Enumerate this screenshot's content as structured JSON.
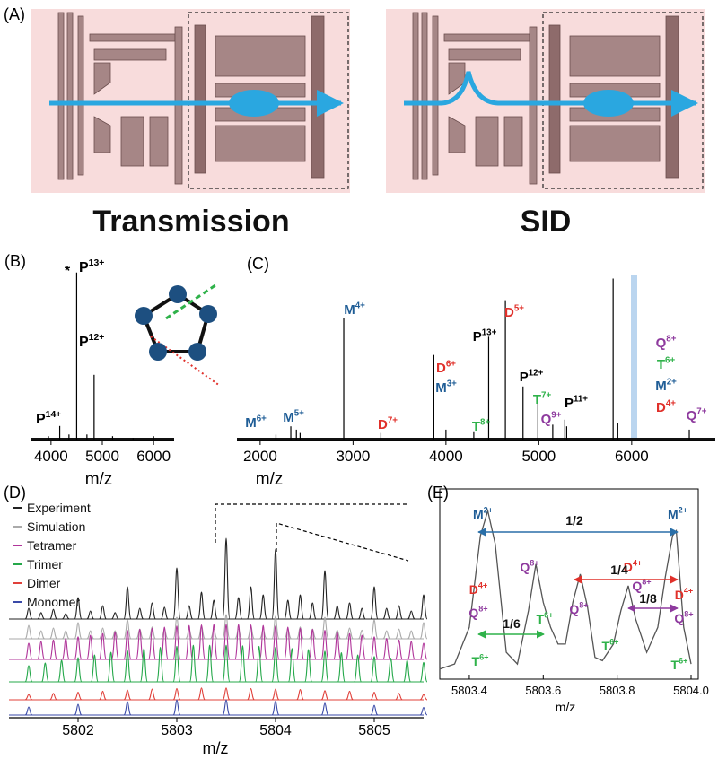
{
  "diagram": {
    "panel": "(A)",
    "labels": [
      "Transmission",
      "SID"
    ]
  },
  "chart_data": [
    {
      "type": "spectrum",
      "panel": "(B)",
      "x_label": "m/z",
      "xlim": [
        3600,
        6400
      ],
      "ylim": [
        0,
        100
      ],
      "xticks": [
        4000,
        5000,
        6000
      ],
      "color": "#000000",
      "x": [
        3950,
        4170,
        4350,
        4500,
        4700,
        4840,
        5200,
        5600,
        6000
      ],
      "values": [
        2,
        8,
        3,
        98,
        3,
        38,
        2,
        1,
        2
      ],
      "annotations": [
        {
          "text": "*",
          "color": "#000000"
        },
        {
          "text": "P",
          "charge": "13+",
          "color": "#000000"
        },
        {
          "text": "P",
          "charge": "12+",
          "color": "#000000"
        },
        {
          "text": "P",
          "charge": "14+",
          "color": "#000000"
        }
      ]
    },
    {
      "type": "spectrum",
      "panel": "(C)",
      "x_label": "m/z",
      "xlim": [
        1750,
        6900
      ],
      "ylim": [
        0,
        100
      ],
      "xticks": [
        2000,
        3000,
        4000,
        5000,
        6000
      ],
      "color": "#000000",
      "x": [
        2170,
        2330,
        2390,
        2430,
        2900,
        3300,
        3870,
        4000,
        4300,
        4460,
        4640,
        4830,
        4990,
        5150,
        5280,
        5300,
        5800,
        5850,
        6620
      ],
      "values": [
        3,
        8,
        6,
        4,
        73,
        4,
        51,
        6,
        5,
        62,
        84,
        32,
        22,
        9,
        12,
        8,
        97,
        10,
        6
      ],
      "annotations": [
        {
          "text": "M",
          "charge": "6+",
          "color": "#1f5d96"
        },
        {
          "text": "M",
          "charge": "5+",
          "color": "#1f5d96"
        },
        {
          "text": "M",
          "charge": "4+",
          "color": "#1f5d96"
        },
        {
          "text": "D",
          "charge": "7+",
          "color": "#e0302a"
        },
        {
          "text": "D",
          "charge": "6+",
          "color": "#e0302a"
        },
        {
          "text": "M",
          "charge": "3+",
          "color": "#1f5d96"
        },
        {
          "text": "T",
          "charge": "8+",
          "color": "#2fb24a"
        },
        {
          "text": "P",
          "charge": "13+",
          "color": "#000000"
        },
        {
          "text": "D",
          "charge": "5+",
          "color": "#e0302a"
        },
        {
          "text": "P",
          "charge": "12+",
          "color": "#000000"
        },
        {
          "text": "T",
          "charge": "7+",
          "color": "#2fb24a"
        },
        {
          "text": "Q",
          "charge": "9+",
          "color": "#8e3a9e"
        },
        {
          "text": "P",
          "charge": "11+",
          "color": "#000000"
        },
        {
          "text": "Q",
          "charge": "8+",
          "color": "#8e3a9e"
        },
        {
          "text": "T",
          "charge": "6+",
          "color": "#2fb24a"
        },
        {
          "text": "M",
          "charge": "2+",
          "color": "#1f5d96"
        },
        {
          "text": "D",
          "charge": "4+",
          "color": "#e0302a"
        },
        {
          "text": "Q",
          "charge": "7+",
          "color": "#8e3a9e"
        }
      ]
    },
    {
      "type": "traces",
      "panel": "(D)",
      "x_label": "m/z",
      "xlim": [
        5801.3,
        5805.5
      ],
      "xticks": [
        5802,
        5803,
        5804,
        5805
      ],
      "series": [
        {
          "name": "Experiment",
          "color": "#222222",
          "x": [
            5801.5,
            5801.625,
            5801.75,
            5801.875,
            5802,
            5802.125,
            5802.25,
            5802.375,
            5802.5,
            5802.625,
            5802.75,
            5802.875,
            5803,
            5803.125,
            5803.25,
            5803.375,
            5803.5,
            5803.625,
            5803.75,
            5803.875,
            5804,
            5804.125,
            5804.25,
            5804.375,
            5804.5,
            5804.625,
            5804.75,
            5804.875,
            5805,
            5805.125,
            5805.25,
            5805.375,
            5805.5
          ],
          "values": [
            20,
            12,
            18,
            10,
            40,
            15,
            25,
            12,
            60,
            20,
            30,
            22,
            95,
            25,
            50,
            35,
            150,
            40,
            60,
            45,
            130,
            35,
            45,
            30,
            90,
            25,
            30,
            20,
            60,
            20,
            25,
            15,
            45
          ]
        },
        {
          "name": "Simulation",
          "color": "#aaaaaa",
          "x": [
            5801.5,
            5801.625,
            5801.75,
            5801.875,
            5802,
            5802.125,
            5802.25,
            5802.375,
            5802.5,
            5802.625,
            5802.75,
            5802.875,
            5803,
            5803.125,
            5803.25,
            5803.375,
            5803.5,
            5803.625,
            5803.75,
            5803.875,
            5804,
            5804.125,
            5804.25,
            5804.375,
            5804.5,
            5804.625,
            5804.75,
            5804.875,
            5805,
            5805.125,
            5805.25,
            5805.375,
            5805.5
          ],
          "values": [
            25,
            15,
            20,
            15,
            30,
            15,
            20,
            15,
            35,
            18,
            22,
            18,
            40,
            18,
            24,
            18,
            45,
            18,
            24,
            18,
            42,
            18,
            22,
            18,
            40,
            16,
            20,
            16,
            35,
            15,
            18,
            15,
            30
          ]
        },
        {
          "name": "Tetramer",
          "color": "#b0359a",
          "x": [
            5801.5,
            5801.625,
            5801.75,
            5801.875,
            5802,
            5802.125,
            5802.25,
            5802.375,
            5802.5,
            5802.625,
            5802.75,
            5802.875,
            5803,
            5803.125,
            5803.25,
            5803.375,
            5803.5,
            5803.625,
            5803.75,
            5803.875,
            5804,
            5804.125,
            5804.25,
            5804.375,
            5804.5,
            5804.625,
            5804.75,
            5804.875,
            5805,
            5805.125,
            5805.25,
            5805.375,
            5805.5
          ],
          "values": [
            30,
            33,
            36,
            39,
            42,
            45,
            48,
            51,
            54,
            56,
            58,
            60,
            62,
            63,
            64,
            65,
            65,
            65,
            64,
            63,
            62,
            60,
            58,
            56,
            54,
            51,
            48,
            45,
            42,
            39,
            36,
            33,
            30
          ]
        },
        {
          "name": "Trimer",
          "color": "#25a84a",
          "x": [
            5801.5,
            5801.667,
            5801.833,
            5802,
            5802.167,
            5802.333,
            5802.5,
            5802.667,
            5802.833,
            5803,
            5803.167,
            5803.333,
            5803.5,
            5803.667,
            5803.833,
            5804,
            5804.167,
            5804.333,
            5804.5,
            5804.667,
            5804.833,
            5805,
            5805.167,
            5805.333,
            5805.5
          ],
          "values": [
            30,
            35,
            40,
            45,
            50,
            55,
            58,
            62,
            64,
            66,
            68,
            68,
            68,
            67,
            66,
            64,
            62,
            60,
            57,
            54,
            50,
            47,
            44,
            40,
            36
          ]
        },
        {
          "name": "Dimer",
          "color": "#e0403a",
          "x": [
            5801.5,
            5801.75,
            5802,
            5802.25,
            5802.5,
            5802.75,
            5803,
            5803.25,
            5803.5,
            5803.75,
            5804,
            5804.25,
            5804.5,
            5804.75,
            5805,
            5805.25,
            5805.5
          ],
          "values": [
            10,
            12,
            14,
            16,
            18,
            20,
            21,
            22,
            22,
            21,
            20,
            19,
            17,
            16,
            14,
            12,
            10
          ]
        },
        {
          "name": "Monomer",
          "color": "#3a4aa8",
          "x": [
            5801.5,
            5802,
            5802.5,
            5803,
            5803.5,
            5804,
            5804.5,
            5805,
            5805.5
          ],
          "values": [
            15,
            20,
            25,
            28,
            28,
            26,
            22,
            18,
            14
          ]
        }
      ]
    },
    {
      "type": "line",
      "panel": "(E)",
      "x_label": "m/z",
      "xlim": [
        5803.32,
        5804.0
      ],
      "ylim": [
        0,
        105
      ],
      "xticks": [
        5803.4,
        5803.6,
        5803.8,
        {
          "value": 5804.0,
          "label": "5804.0"
        }
      ],
      "color": "#555555",
      "x": [
        5803.32,
        5803.36,
        5803.4,
        5803.43,
        5803.45,
        5803.47,
        5803.5,
        5803.53,
        5803.56,
        5803.58,
        5803.6,
        5803.62,
        5803.64,
        5803.66,
        5803.68,
        5803.7,
        5803.72,
        5803.74,
        5803.76,
        5803.79,
        5803.81,
        5803.83,
        5803.85,
        5803.88,
        5803.91,
        5803.93,
        5803.95,
        5803.96,
        5803.98,
        5804.0
      ],
      "y": [
        5,
        8,
        30,
        85,
        100,
        80,
        15,
        8,
        40,
        68,
        45,
        30,
        20,
        20,
        45,
        62,
        42,
        12,
        10,
        20,
        40,
        55,
        35,
        15,
        30,
        60,
        85,
        88,
        30,
        8
      ],
      "annotations": [
        {
          "text": "M",
          "charge": "2+",
          "color": "#1f5d96"
        },
        {
          "text": "M",
          "charge": "2+",
          "color": "#1f5d96"
        },
        {
          "text": "Q",
          "charge": "8+",
          "color": "#8e3a9e"
        },
        {
          "text": "D",
          "charge": "4+",
          "color": "#e0302a"
        },
        {
          "text": "Q",
          "charge": "8+",
          "color": "#8e3a9e"
        },
        {
          "text": "D",
          "charge": "4+",
          "color": "#e0302a"
        },
        {
          "text": "Q",
          "charge": "8+",
          "color": "#8e3a9e"
        },
        {
          "text": "Q",
          "charge": "8+",
          "color": "#8e3a9e"
        },
        {
          "text": "T",
          "charge": "6+",
          "color": "#2fb24a"
        },
        {
          "text": "T",
          "charge": "6+",
          "color": "#2fb24a"
        },
        {
          "text": "T",
          "charge": "6+",
          "color": "#2fb24a"
        },
        {
          "text": "D",
          "charge": "4+",
          "color": "#e0302a"
        },
        {
          "text": "Q",
          "charge": "8+",
          "color": "#8e3a9e"
        },
        {
          "text": "T",
          "charge": "6+",
          "color": "#2fb24a"
        }
      ],
      "arrows": [
        {
          "label": "1/2",
          "color": "#2a6fa8"
        },
        {
          "label": "1/4",
          "color": "#e0302a"
        },
        {
          "label": "1/8",
          "color": "#8e3a9e"
        },
        {
          "label": "1/6",
          "color": "#2fb24a"
        }
      ]
    }
  ]
}
